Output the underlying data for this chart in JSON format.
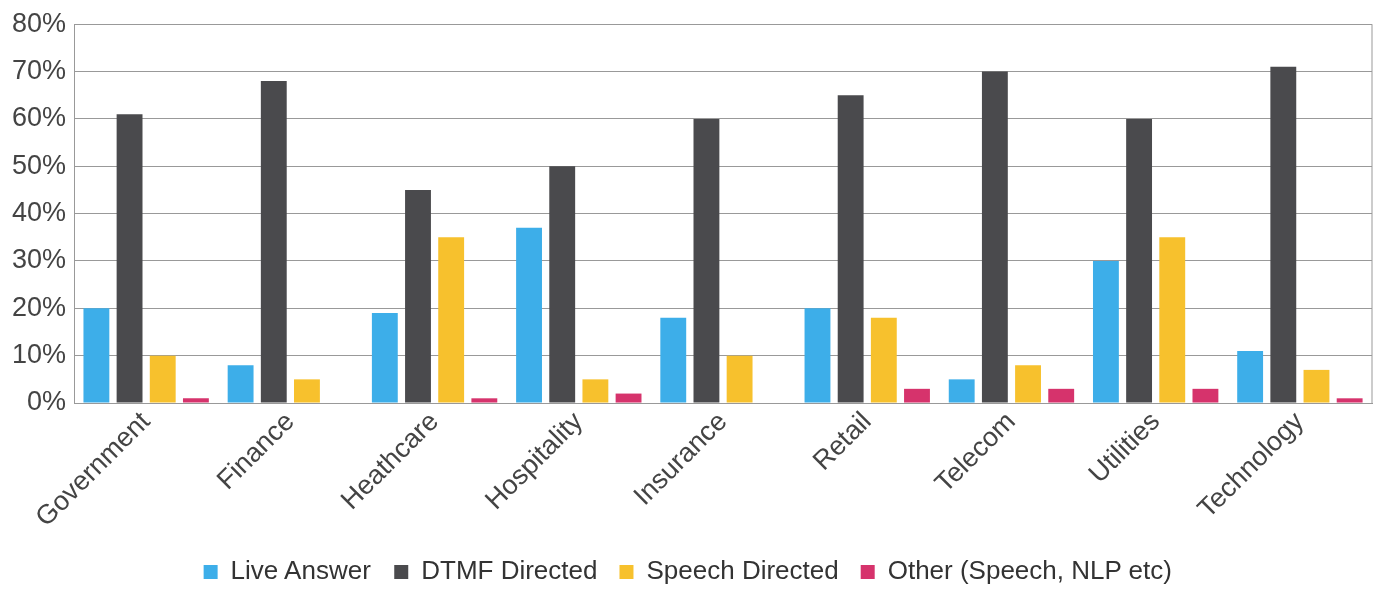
{
  "chart_data": {
    "type": "bar",
    "categories": [
      "Government",
      "Finance",
      "Heathcare",
      "Hospitality",
      "Insurance",
      "Retail",
      "Telecom",
      "Utilities",
      "Technology"
    ],
    "series": [
      {
        "name": "Live Answer",
        "color": "#3daee9",
        "values": [
          20,
          8,
          19,
          37,
          18,
          20,
          5,
          30,
          11
        ]
      },
      {
        "name": "DTMF Directed",
        "color": "#4a4a4d",
        "values": [
          61,
          68,
          45,
          50,
          60,
          65,
          70,
          60,
          71
        ]
      },
      {
        "name": "Speech Directed",
        "color": "#f7c12d",
        "values": [
          10,
          5,
          35,
          5,
          10,
          18,
          8,
          35,
          7
        ]
      },
      {
        "name": "Other (Speech, NLP etc)",
        "color": "#d6336c",
        "values": [
          1,
          0,
          1,
          2,
          0,
          3,
          3,
          3,
          1
        ]
      }
    ],
    "ylim": [
      0,
      80
    ],
    "yticks": [
      {
        "value": 0,
        "label": "0%"
      },
      {
        "value": 10,
        "label": "10%"
      },
      {
        "value": 20,
        "label": "20%"
      },
      {
        "value": 30,
        "label": "30%"
      },
      {
        "value": 40,
        "label": "40%"
      },
      {
        "value": 50,
        "label": "50%"
      },
      {
        "value": 60,
        "label": "60%"
      },
      {
        "value": 70,
        "label": "70%"
      },
      {
        "value": 80,
        "label": "80%"
      }
    ],
    "grid": "y",
    "legend": "bottom"
  }
}
